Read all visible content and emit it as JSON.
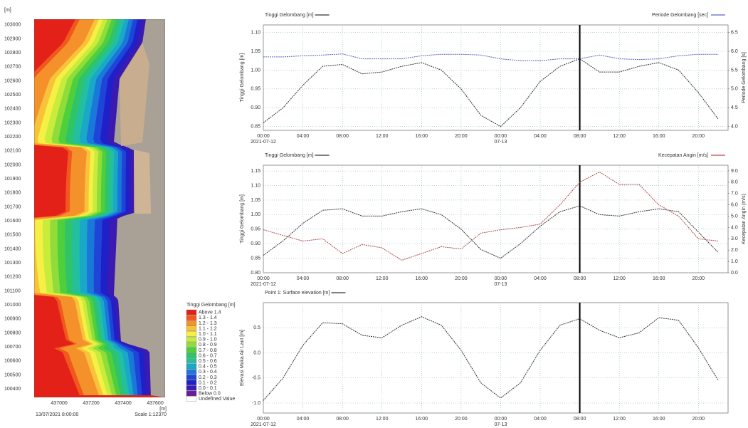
{
  "map": {
    "y_unit": "[m]",
    "x_unit": "[m]",
    "yticks": [
      103000,
      102900,
      102800,
      102700,
      102600,
      102500,
      102400,
      102300,
      102200,
      102100,
      102000,
      101900,
      101800,
      101700,
      101600,
      101500,
      101400,
      101300,
      101200,
      101100,
      101000,
      100900,
      100800,
      100700,
      100600,
      100500,
      100400
    ],
    "ylim": [
      100340,
      103040
    ],
    "xticks": [
      437000,
      437200,
      437400,
      437600
    ],
    "xlim": [
      436844,
      437662
    ],
    "legend_title": "Tinggi Gelombang [m]",
    "legend": [
      {
        "label": "Above 1.4",
        "color": "#e32119"
      },
      {
        "label": "1.3 - 1.4",
        "color": "#f0581e"
      },
      {
        "label": "1.2 - 1.3",
        "color": "#f5912a"
      },
      {
        "label": "1.1 - 1.2",
        "color": "#f8c33a"
      },
      {
        "label": "1.0 - 1.1",
        "color": "#f5f045"
      },
      {
        "label": "0.9 - 1.0",
        "color": "#c8ec3c"
      },
      {
        "label": "0.8 - 0.9",
        "color": "#8fdc3a"
      },
      {
        "label": "0.7 - 0.8",
        "color": "#4fcf3c"
      },
      {
        "label": "0.6 - 0.7",
        "color": "#2fc46a"
      },
      {
        "label": "0.5 - 0.6",
        "color": "#22c0a0"
      },
      {
        "label": "0.4 - 0.5",
        "color": "#1aa8c8"
      },
      {
        "label": "0.3 - 0.4",
        "color": "#1a78d8"
      },
      {
        "label": "0.2 - 0.3",
        "color": "#1f45d8"
      },
      {
        "label": "0.1 - 0.2",
        "color": "#2020c8"
      },
      {
        "label": "0.0 - 0.1",
        "color": "#3a1ab0"
      },
      {
        "label": "Below 0.0",
        "color": "#6a1a9a"
      },
      {
        "label": "Undefined Value",
        "color": "#ffffff"
      }
    ],
    "timestamp": "13/07/2021 8:00:00",
    "scale": "Scale 1:12370"
  },
  "chart_data": [
    {
      "type": "line",
      "x": [
        "2021-07-12T00:00",
        "2021-07-12T02:00",
        "2021-07-12T04:00",
        "2021-07-12T06:00",
        "2021-07-12T08:00",
        "2021-07-12T10:00",
        "2021-07-12T12:00",
        "2021-07-12T14:00",
        "2021-07-12T16:00",
        "2021-07-12T18:00",
        "2021-07-12T20:00",
        "2021-07-12T22:00",
        "2021-07-13T00:00",
        "2021-07-13T02:00",
        "2021-07-13T04:00",
        "2021-07-13T06:00",
        "2021-07-13T08:00",
        "2021-07-13T10:00",
        "2021-07-13T12:00",
        "2021-07-13T14:00",
        "2021-07-13T16:00",
        "2021-07-13T18:00",
        "2021-07-13T20:00",
        "2021-07-13T22:00"
      ],
      "xlim": [
        "2021-07-12T00:00",
        "2021-07-13T23:00"
      ],
      "xticks": [
        {
          "value": "2021-07-12T00:00",
          "label": "00:00"
        },
        {
          "value": "2021-07-12T04:00",
          "label": "04:00"
        },
        {
          "value": "2021-07-12T08:00",
          "label": "08:00"
        },
        {
          "value": "2021-07-12T12:00",
          "label": "12:00"
        },
        {
          "value": "2021-07-12T16:00",
          "label": "16:00"
        },
        {
          "value": "2021-07-12T20:00",
          "label": "20:00"
        },
        {
          "value": "2021-07-13T00:00",
          "label": "00:00"
        },
        {
          "value": "2021-07-13T04:00",
          "label": "04:00"
        },
        {
          "value": "2021-07-13T08:00",
          "label": "08:00"
        },
        {
          "value": "2021-07-13T12:00",
          "label": "12:00"
        },
        {
          "value": "2021-07-13T16:00",
          "label": "16:00"
        },
        {
          "value": "2021-07-13T20:00",
          "label": "20:00"
        }
      ],
      "x_date_labels": [
        {
          "value": "2021-07-12T00:00",
          "label": "2021-07-12"
        },
        {
          "value": "2021-07-13T00:00",
          "label": "07-13"
        }
      ],
      "marker_x": "2021-07-13T08:00",
      "y_label": "Tinggi Gelombang [m]",
      "y2_label": "Periode Gelombang [s]",
      "ylim": [
        0.84,
        1.12
      ],
      "yticks": [
        0.85,
        {
          "value": 0.9,
          "label": "0.90"
        },
        0.95,
        {
          "value": 1,
          "label": "1.00"
        },
        1.05,
        {
          "value": 1.1,
          "label": "1.10"
        }
      ],
      "y2lim": [
        3.9,
        6.7
      ],
      "y2ticks": [
        {
          "value": 4,
          "label": "4.0"
        },
        4.5,
        {
          "value": 5,
          "label": "5.0"
        },
        5.5,
        {
          "value": 6,
          "label": "6.0"
        },
        6.5
      ],
      "grid": true,
      "series": [
        {
          "name": "Tinggi Gelombang [m]",
          "color": "#333333",
          "values": [
            0.86,
            0.9,
            0.96,
            1.01,
            1.015,
            0.99,
            0.995,
            1.01,
            1.02,
            1.0,
            0.95,
            0.88,
            0.85,
            0.9,
            0.97,
            1.01,
            1.03,
            0.995,
            0.995,
            1.01,
            1.02,
            1.0,
            0.94,
            0.87
          ]
        },
        {
          "name": "Periode Gelombang [sec]",
          "color": "#5c63c4",
          "axis": "y2",
          "values": [
            5.85,
            5.85,
            5.88,
            5.9,
            5.93,
            5.8,
            5.8,
            5.8,
            5.88,
            5.92,
            5.92,
            5.9,
            5.8,
            5.75,
            5.75,
            5.8,
            5.8,
            5.9,
            5.8,
            5.78,
            5.8,
            5.88,
            5.92,
            5.92
          ]
        }
      ]
    },
    {
      "type": "line",
      "x": [
        "2021-07-12T00:00",
        "2021-07-12T02:00",
        "2021-07-12T04:00",
        "2021-07-12T06:00",
        "2021-07-12T08:00",
        "2021-07-12T10:00",
        "2021-07-12T12:00",
        "2021-07-12T14:00",
        "2021-07-12T16:00",
        "2021-07-12T18:00",
        "2021-07-12T20:00",
        "2021-07-12T22:00",
        "2021-07-13T00:00",
        "2021-07-13T02:00",
        "2021-07-13T04:00",
        "2021-07-13T06:00",
        "2021-07-13T08:00",
        "2021-07-13T10:00",
        "2021-07-13T12:00",
        "2021-07-13T14:00",
        "2021-07-13T16:00",
        "2021-07-13T18:00",
        "2021-07-13T20:00",
        "2021-07-13T22:00"
      ],
      "xlim": [
        "2021-07-12T00:00",
        "2021-07-13T23:00"
      ],
      "xticks": [
        {
          "value": "2021-07-12T00:00",
          "label": "00:00"
        },
        {
          "value": "2021-07-12T04:00",
          "label": "04:00"
        },
        {
          "value": "2021-07-12T08:00",
          "label": "08:00"
        },
        {
          "value": "2021-07-12T12:00",
          "label": "12:00"
        },
        {
          "value": "2021-07-12T16:00",
          "label": "16:00"
        },
        {
          "value": "2021-07-12T20:00",
          "label": "20:00"
        },
        {
          "value": "2021-07-13T00:00",
          "label": "00:00"
        },
        {
          "value": "2021-07-13T04:00",
          "label": "04:00"
        },
        {
          "value": "2021-07-13T08:00",
          "label": "08:00"
        },
        {
          "value": "2021-07-13T12:00",
          "label": "12:00"
        },
        {
          "value": "2021-07-13T16:00",
          "label": "16:00"
        },
        {
          "value": "2021-07-13T20:00",
          "label": "20:00"
        }
      ],
      "x_date_labels": [
        {
          "value": "2021-07-12T00:00",
          "label": "2021-07-12"
        },
        {
          "value": "2021-07-13T00:00",
          "label": "07-13"
        }
      ],
      "marker_x": "2021-07-13T08:00",
      "y_label": "Tinggi Gelombang [m]",
      "y2_label": "Kecepatan Angin (m/s)",
      "ylim": [
        0.8,
        1.17
      ],
      "yticks": [
        {
          "value": 0.8,
          "label": "0.80"
        },
        0.85,
        {
          "value": 0.9,
          "label": "0.90"
        },
        0.95,
        {
          "value": 1,
          "label": "1.00"
        },
        1.05,
        {
          "value": 1.1,
          "label": "1.10"
        },
        1.15
      ],
      "y2lim": [
        0,
        9.5
      ],
      "y2ticks": [
        {
          "value": 0,
          "label": "0.0"
        },
        {
          "value": 1,
          "label": "1.0"
        },
        {
          "value": 2,
          "label": "2.0"
        },
        {
          "value": 3,
          "label": "3.0"
        },
        {
          "value": 4,
          "label": "4.0"
        },
        {
          "value": 5,
          "label": "5.0"
        },
        {
          "value": 6,
          "label": "6.0"
        },
        {
          "value": 7,
          "label": "7.0"
        },
        {
          "value": 8,
          "label": "8.0"
        },
        {
          "value": 9,
          "label": "9.0"
        }
      ],
      "grid": true,
      "series": [
        {
          "name": "Tinggi Gelombang [m]",
          "color": "#333333",
          "values": [
            0.86,
            0.91,
            0.97,
            1.015,
            1.02,
            0.995,
            0.995,
            1.01,
            1.02,
            1.0,
            0.95,
            0.88,
            0.85,
            0.9,
            0.96,
            1.01,
            1.03,
            1.0,
            0.995,
            1.01,
            1.02,
            1.01,
            0.94,
            0.87
          ]
        },
        {
          "name": "Kecepatan Angin [m/s]",
          "color": "#b34a4a",
          "axis": "y2",
          "values": [
            3.8,
            3.3,
            2.8,
            3.0,
            1.7,
            2.5,
            2.2,
            1.1,
            1.7,
            2.3,
            2.1,
            3.5,
            3.8,
            4.0,
            4.3,
            6.0,
            8.0,
            8.9,
            7.8,
            7.8,
            6.0,
            5.0,
            3.0,
            2.8
          ]
        }
      ]
    },
    {
      "type": "line",
      "x": [
        "2021-07-12T00:00",
        "2021-07-12T02:00",
        "2021-07-12T04:00",
        "2021-07-12T06:00",
        "2021-07-12T08:00",
        "2021-07-12T10:00",
        "2021-07-12T12:00",
        "2021-07-12T14:00",
        "2021-07-12T16:00",
        "2021-07-12T18:00",
        "2021-07-12T20:00",
        "2021-07-12T22:00",
        "2021-07-13T00:00",
        "2021-07-13T02:00",
        "2021-07-13T04:00",
        "2021-07-13T06:00",
        "2021-07-13T08:00",
        "2021-07-13T10:00",
        "2021-07-13T12:00",
        "2021-07-13T14:00",
        "2021-07-13T16:00",
        "2021-07-13T18:00",
        "2021-07-13T20:00",
        "2021-07-13T22:00"
      ],
      "xlim": [
        "2021-07-12T00:00",
        "2021-07-13T23:00"
      ],
      "xticks": [
        {
          "value": "2021-07-12T00:00",
          "label": "00:00"
        },
        {
          "value": "2021-07-12T04:00",
          "label": "04:00"
        },
        {
          "value": "2021-07-12T08:00",
          "label": "08:00"
        },
        {
          "value": "2021-07-12T12:00",
          "label": "12:00"
        },
        {
          "value": "2021-07-12T16:00",
          "label": "16:00"
        },
        {
          "value": "2021-07-12T20:00",
          "label": "20:00"
        },
        {
          "value": "2021-07-13T00:00",
          "label": "00:00"
        },
        {
          "value": "2021-07-13T04:00",
          "label": "04:00"
        },
        {
          "value": "2021-07-13T08:00",
          "label": "08:00"
        },
        {
          "value": "2021-07-13T12:00",
          "label": "12:00"
        },
        {
          "value": "2021-07-13T16:00",
          "label": "16:00"
        },
        {
          "value": "2021-07-13T20:00",
          "label": "20:00"
        }
      ],
      "x_date_labels": [
        {
          "value": "2021-07-12T00:00",
          "label": "2021-07-12"
        },
        {
          "value": "2021-07-13T00:00",
          "label": "07-13"
        }
      ],
      "marker_x": "2021-07-13T08:00",
      "y_label": "Elevasi Muka Air Laut [m]",
      "ylim": [
        -1.2,
        1.0
      ],
      "yticks": [
        {
          "value": -1,
          "label": "-1.0"
        },
        -0.5,
        {
          "value": 0,
          "label": "0.0"
        },
        0.5
      ],
      "grid": true,
      "series": [
        {
          "name": "Point 1: Surface elevation [m]",
          "color": "#333333",
          "values": [
            -0.95,
            -0.5,
            0.15,
            0.6,
            0.58,
            0.35,
            0.3,
            0.55,
            0.72,
            0.55,
            0.05,
            -0.6,
            -0.9,
            -0.6,
            0.05,
            0.55,
            0.68,
            0.45,
            0.3,
            0.4,
            0.7,
            0.65,
            0.1,
            -0.55
          ]
        }
      ]
    }
  ]
}
